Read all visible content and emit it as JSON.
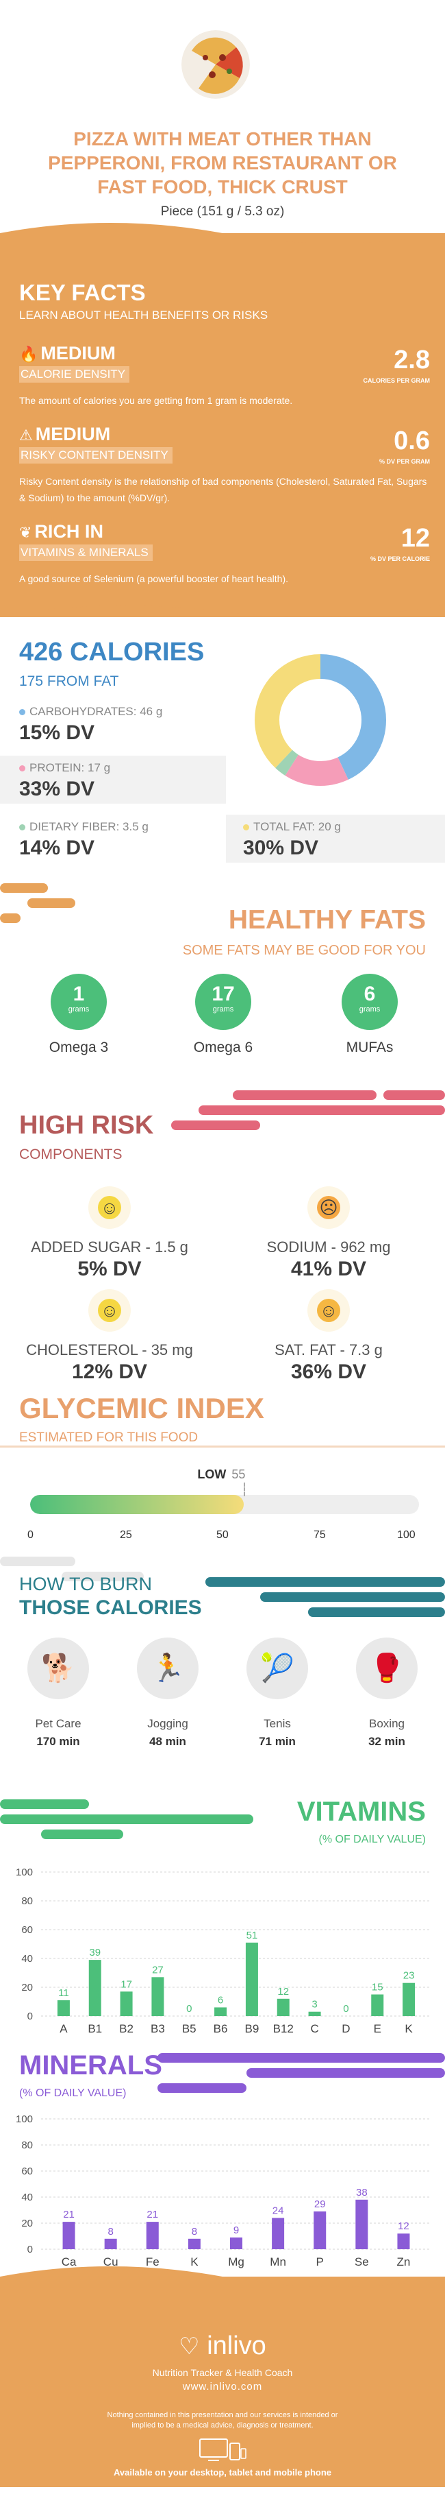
{
  "header": {
    "title": "PIZZA WITH MEAT OTHER THAN PEPPERONI, FROM RESTAURANT OR FAST FOOD, THICK CRUST",
    "serving": "Piece (151 g / 5.3 oz)"
  },
  "key_facts": {
    "title": "KEY FACTS",
    "subtitle": "LEARN ABOUT HEALTH BENEFITS OR RISKS",
    "items": [
      {
        "level": "MEDIUM",
        "label": "CALORIE DENSITY",
        "value": "2.8",
        "unit": "CALORIES PER GRAM",
        "desc": "The amount of calories you are getting from 1 gram is moderate."
      },
      {
        "level": "MEDIUM",
        "label": "RISKY CONTENT DENSITY",
        "value": "0.6",
        "unit": "% DV PER GRAM",
        "desc": "Risky Content density is the relationship of bad components (Cholesterol, Saturated Fat, Sugars & Sodium) to the amount (%DV/gr)."
      },
      {
        "level": "RICH IN",
        "label": "VITAMINS & MINERALS",
        "value": "12",
        "unit": "% DV PER CALORIE",
        "desc": "A good source of Selenium (a powerful booster of heart health)."
      }
    ]
  },
  "calories": {
    "title": "426 CALORIES",
    "from_fat": "175 FROM FAT",
    "nutrients": [
      {
        "label": "CARBOHYDRATES: 46 g",
        "dv": "15% DV",
        "color": "#7fb8e6"
      },
      {
        "label": "PROTEIN: 17 g",
        "dv": "33% DV",
        "color": "#f59db8"
      },
      {
        "label": "DIETARY FIBER: 3.5 g",
        "dv": "14% DV",
        "color": "#9fd3b4"
      },
      {
        "label": "TOTAL FAT: 20 g",
        "dv": "30% DV",
        "color": "#f5dc7a"
      }
    ],
    "donut": [
      {
        "name": "carbohydrates",
        "fraction": 0.43,
        "color": "#7fb8e6"
      },
      {
        "name": "protein",
        "fraction": 0.16,
        "color": "#f59db8"
      },
      {
        "name": "dietary fiber",
        "fraction": 0.03,
        "color": "#9fd3b4"
      },
      {
        "name": "total fat",
        "fraction": 0.38,
        "color": "#f5dc7a"
      }
    ]
  },
  "healthy_fats": {
    "title": "HEALTHY FATS",
    "subtitle": "SOME FATS MAY BE GOOD FOR YOU",
    "unit": "grams",
    "items": [
      {
        "value": "1",
        "name": "Omega 3"
      },
      {
        "value": "17",
        "name": "Omega 6"
      },
      {
        "value": "6",
        "name": "MUFAs"
      }
    ]
  },
  "high_risk": {
    "title": "HIGH RISK",
    "subtitle": "COMPONENTS",
    "items": [
      {
        "name": "ADDED SUGAR - 1.5 g",
        "dv": "5% DV",
        "face": "happy",
        "color": "#f5d742"
      },
      {
        "name": "SODIUM - 962 mg",
        "dv": "41% DV",
        "face": "sad",
        "color": "#f5a742"
      },
      {
        "name": "CHOLESTEROL - 35 mg",
        "dv": "12% DV",
        "face": "happy",
        "color": "#f5d742"
      },
      {
        "name": "SAT. FAT - 7.3 g",
        "dv": "36% DV",
        "face": "neutral",
        "color": "#f5b742"
      }
    ]
  },
  "glycemic": {
    "title": "GLYCEMIC INDEX",
    "subtitle": "ESTIMATED FOR THIS FOOD",
    "level": "LOW",
    "value": "55",
    "value_num": 55,
    "ticks": [
      "0",
      "25",
      "50",
      "75",
      "100"
    ]
  },
  "burn": {
    "title_1": "HOW TO BURN",
    "title_2": "THOSE CALORIES",
    "activities": [
      {
        "name": "Pet Care",
        "minutes": "170 min",
        "icon": "pet-care-icon"
      },
      {
        "name": "Jogging",
        "minutes": "48 min",
        "icon": "jogging-icon"
      },
      {
        "name": "Tenis",
        "minutes": "71 min",
        "icon": "tennis-icon"
      },
      {
        "name": "Boxing",
        "minutes": "32 min",
        "icon": "boxing-icon"
      }
    ]
  },
  "vitamins": {
    "title": "VITAMINS",
    "subtitle": "(% OF DAILY VALUE)"
  },
  "minerals": {
    "title": "MINERALS",
    "subtitle": "(% OF DAILY VALUE)"
  },
  "chart_data": [
    {
      "type": "bar",
      "categories": [
        "A",
        "B1",
        "B2",
        "B3",
        "B5",
        "B6",
        "B9",
        "B12",
        "C",
        "D",
        "E",
        "K"
      ],
      "values": [
        11,
        39,
        17,
        27,
        0,
        6,
        51,
        12,
        3,
        0,
        15,
        23
      ],
      "ylim": [
        0,
        100
      ],
      "yticks": [
        "100",
        "80",
        "60",
        "40",
        "20",
        "0"
      ],
      "color": "#4cbf7a",
      "grid": true
    },
    {
      "type": "bar",
      "categories": [
        "Ca",
        "Cu",
        "Fe",
        "K",
        "Mg",
        "Mn",
        "P",
        "Se",
        "Zn"
      ],
      "values": [
        21,
        8,
        21,
        8,
        9,
        24,
        29,
        38,
        12
      ],
      "ylim": [
        0,
        100
      ],
      "yticks": [
        "100",
        "80",
        "60",
        "40",
        "20",
        "0"
      ],
      "color": "#8a5bd6",
      "grid": true
    }
  ],
  "footer": {
    "brand": "inlivo",
    "tagline": "Nutrition Tracker & Health Coach",
    "site": "www.inlivo.com",
    "disclaimer": "Nothing contained in this presentation and our services is intended or implied to be a medical advice, diagnosis or treatment.",
    "available": "Available on your desktop, tablet and mobile phone"
  }
}
